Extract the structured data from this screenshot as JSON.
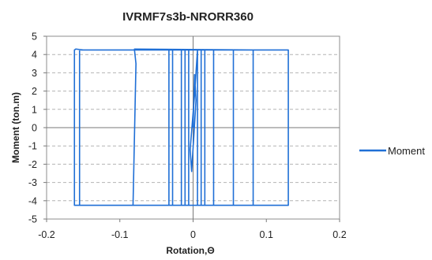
{
  "chart_data": {
    "type": "line",
    "title": "IVRMF7s3b-NRORR360",
    "xlabel": "Rotation,Θ",
    "ylabel": "Moment (ton.m)",
    "xlim": [
      -0.2,
      0.2
    ],
    "ylim": [
      -5,
      5
    ],
    "x_ticks": [
      -0.2,
      -0.1,
      0,
      0.1,
      0.2
    ],
    "x_tick_labels": [
      "-0.2",
      "-0.1",
      "0",
      "0.1",
      "0.2"
    ],
    "y_ticks": [
      -5,
      -4,
      -3,
      -2,
      -1,
      0,
      1,
      2,
      3,
      4,
      5
    ],
    "y_tick_labels": [
      "-5",
      "-4",
      "-3",
      "-2",
      "-1",
      "0",
      "1",
      "2",
      "3",
      "4",
      "5"
    ],
    "grid": "horizontal dashed",
    "legend_position": "right",
    "series": [
      {
        "name": "Moment",
        "color": "#1f6fd6",
        "x": [
          0,
          0.002,
          0.004,
          -0.002,
          -0.004,
          0.002,
          0.006,
          0.006,
          -0.006,
          -0.006,
          0.006,
          0.011,
          0.011,
          -0.011,
          -0.011,
          0.011,
          0.016,
          0.016,
          -0.016,
          -0.016,
          0.016,
          0.028,
          0.028,
          -0.028,
          -0.028,
          0.028,
          0.055,
          0.055,
          -0.033,
          -0.033,
          0.055,
          0.082,
          0.082,
          -0.082,
          -0.078,
          -0.08,
          -0.08,
          0.082,
          0.13,
          0.13,
          -0.155,
          -0.155,
          0.13,
          0.13,
          0.13,
          -0.162,
          -0.162,
          -0.16,
          -0.15,
          0.13,
          0.13
        ],
        "y": [
          0,
          2.9,
          1.5,
          -2.4,
          -1.2,
          1.8,
          4.25,
          -4.25,
          -4.25,
          4.25,
          4.25,
          4.25,
          -4.25,
          -4.25,
          4.25,
          4.25,
          4.25,
          -4.25,
          -4.25,
          4.25,
          4.25,
          4.25,
          -4.25,
          -4.25,
          4.25,
          4.25,
          4.25,
          -4.25,
          -4.25,
          4.25,
          4.25,
          4.25,
          -4.25,
          -4.25,
          3.5,
          4.25,
          4.3,
          4.25,
          4.25,
          -4.25,
          -4.25,
          4.25,
          4.25,
          4.25,
          -4.25,
          -4.25,
          4.25,
          4.3,
          4.25,
          4.25,
          0
        ]
      }
    ]
  },
  "legend": {
    "label": "Moment"
  }
}
